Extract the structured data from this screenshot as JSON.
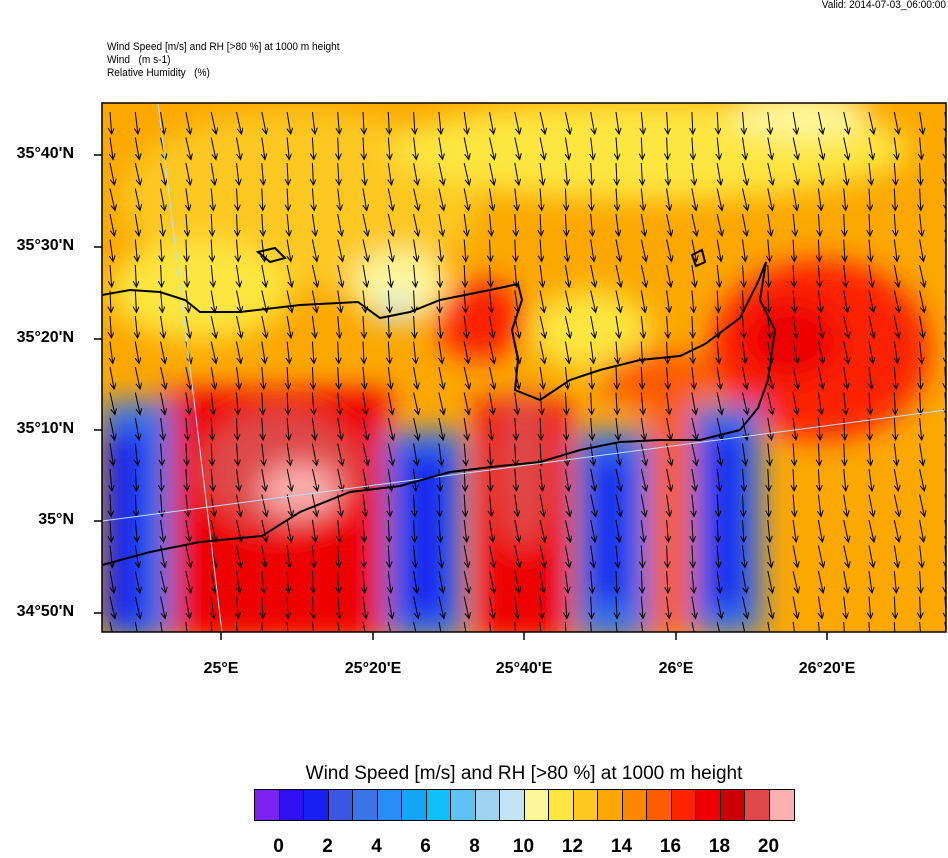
{
  "valid_time": "Valid: 2014-07-03_06:00:00",
  "titles": [
    "Wind Speed [m/s] and RH [>80 %] at 1000 m height",
    "Wind   (m s-1)",
    "Relative Humidity   (%)"
  ],
  "y_axis_labels": [
    "35°40'N",
    "35°30'N",
    "35°20'N",
    "35°10'N",
    "35°N",
    "34°50'N"
  ],
  "x_axis_labels": [
    "25°E",
    "25°20'E",
    "25°40'E",
    "26°E",
    "26°20'E"
  ],
  "colorbar": {
    "title": "Wind Speed [m/s] and RH [>80 %] at 1000 m height",
    "labels": [
      "0",
      "2",
      "4",
      "6",
      "8",
      "10",
      "12",
      "14",
      "16",
      "18",
      "20"
    ],
    "colors": [
      "#7b22ee",
      "#3010f0",
      "#1620f0",
      "#3a55e0",
      "#3a75e6",
      "#2a8cf6",
      "#12a6f5",
      "#10c0fa",
      "#60c2f2",
      "#9ed2ee",
      "#c2e4f4",
      "#fdf79a",
      "#fde640",
      "#fdc820",
      "#fca800",
      "#fc8600",
      "#fc5c00",
      "#fc2400",
      "#ee0000",
      "#cc0000",
      "#de4848",
      "#fdb0b0"
    ]
  }
}
